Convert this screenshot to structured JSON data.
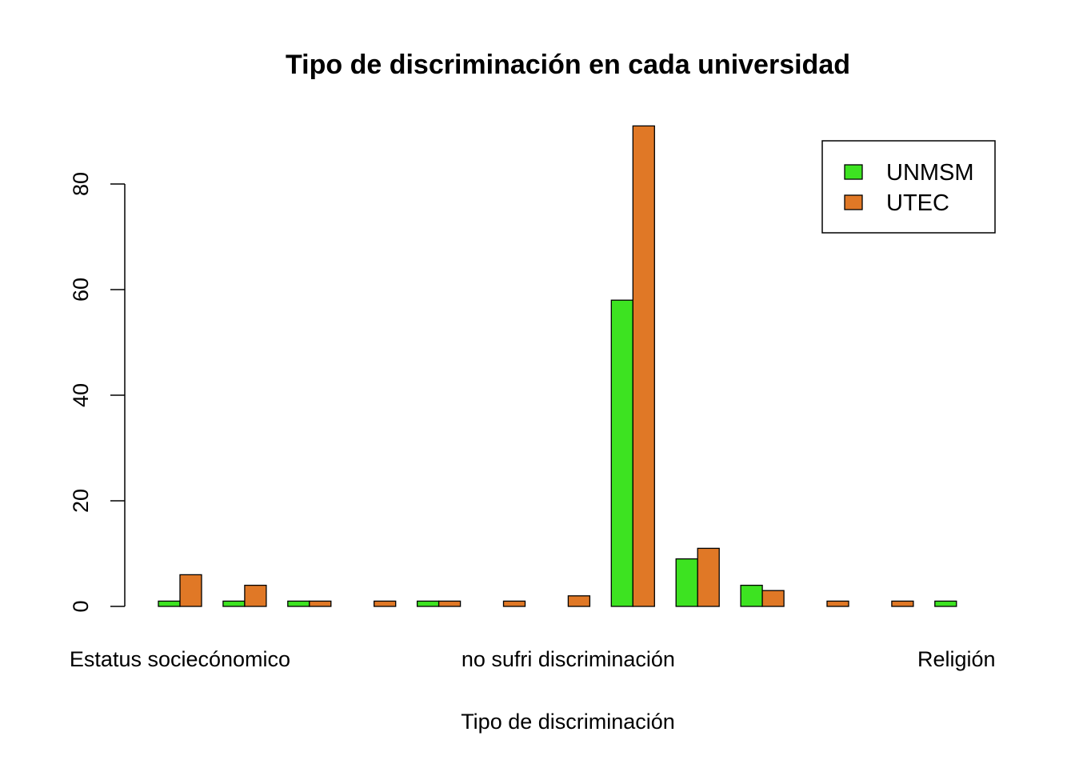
{
  "chart_data": {
    "type": "bar",
    "title": "Tipo de discriminación en cada universidad",
    "xlabel": "Tipo de discriminación",
    "ylabel": "",
    "ylim": [
      0,
      90
    ],
    "yticks": [
      0,
      20,
      40,
      60,
      80
    ],
    "categories": [
      "",
      "",
      "",
      "",
      "",
      "",
      "",
      "",
      "",
      "",
      "",
      "",
      ""
    ],
    "x_tick_labels": [
      {
        "index": 0,
        "label": "Estatus sociecónomico"
      },
      {
        "index": 6,
        "label": "no sufri discriminación"
      },
      {
        "index": 12,
        "label": "Religión"
      }
    ],
    "series": [
      {
        "name": "UNMSM",
        "color": "#3de321",
        "values": [
          1,
          1,
          1,
          0,
          1,
          0,
          0,
          58,
          9,
          4,
          0,
          0,
          1
        ]
      },
      {
        "name": "UTEC",
        "color": "#e07826",
        "values": [
          6,
          4,
          1,
          1,
          1,
          1,
          2,
          91,
          11,
          3,
          1,
          1,
          0
        ]
      }
    ],
    "legend": {
      "position": "top-right",
      "entries": [
        "UNMSM",
        "UTEC"
      ]
    },
    "grid": false
  }
}
